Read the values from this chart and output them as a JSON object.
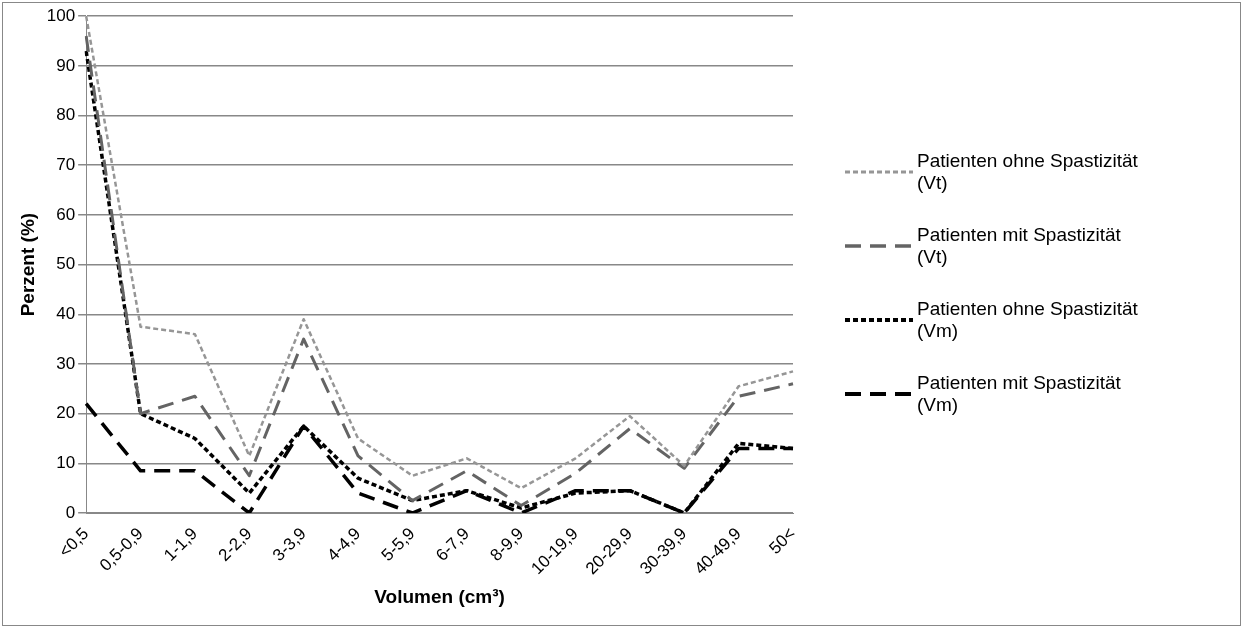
{
  "chart_data": {
    "type": "line",
    "xlabel": "Volumen (cm³)",
    "ylabel": "Perzent (%)",
    "categories": [
      "<0,5",
      "0,5-0,9",
      "1-1,9",
      "2-2,9",
      "3-3,9",
      "4-4,9",
      "5-5,9",
      "6-7,9",
      "8-9,9",
      "10-19,9",
      "20-29,9",
      "30-39,9",
      "40-49,9",
      "50<"
    ],
    "series": [
      {
        "name": "Patienten ohne Spastizität  (Vt)",
        "color": "#969696",
        "line_style": "dotted",
        "values": [
          100,
          37.5,
          36,
          11.5,
          39,
          15,
          7.5,
          11,
          5,
          11,
          19.5,
          9.5,
          25.5,
          28.5
        ]
      },
      {
        "name": "Patienten mit Spastizität (Vt)",
        "color": "#646464",
        "line_style": "dashed",
        "values": [
          96,
          20,
          23.5,
          7.5,
          35,
          11.5,
          2.5,
          8.5,
          1.5,
          8,
          17,
          9,
          23.5,
          26
        ]
      },
      {
        "name": "Patienten ohne Spastizität  (Vm)",
        "color": "#000000",
        "line_style": "dotted",
        "values": [
          93,
          20,
          15,
          4,
          17.5,
          7,
          2.5,
          4.5,
          1,
          4,
          4.5,
          0,
          14,
          13
        ]
      },
      {
        "name": "Patienten mit Spastizität (Vm)",
        "color": "#000000",
        "line_style": "dashed",
        "values": [
          22,
          8.5,
          8.5,
          0,
          17.5,
          4,
          0,
          4.5,
          0,
          4.5,
          4.5,
          0,
          13,
          13
        ]
      }
    ],
    "ylim": [
      0,
      100
    ],
    "yticks": [
      0,
      10,
      20,
      30,
      40,
      50,
      60,
      70,
      80,
      90,
      100
    ],
    "grid": "y",
    "legend": "right",
    "marker": "none"
  }
}
